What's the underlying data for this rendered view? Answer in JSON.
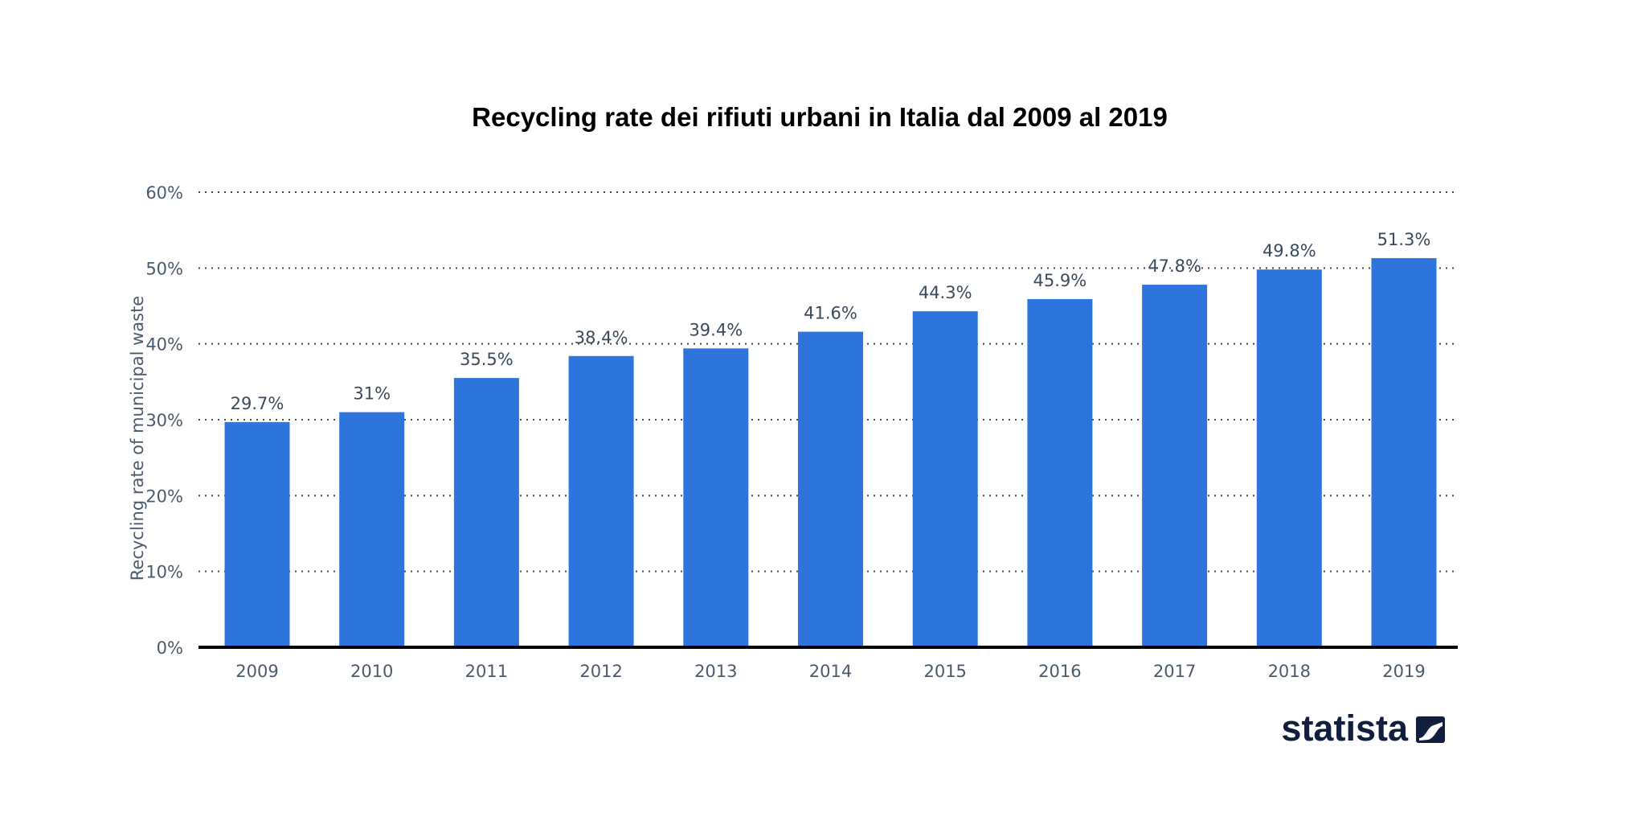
{
  "chart_data": {
    "type": "bar",
    "title": "Recycling rate dei rifiuti urbani in Italia dal 2009 al 2019",
    "xlabel": "",
    "ylabel": "Recycling rate of municipal waste",
    "categories": [
      "2009",
      "2010",
      "2011",
      "2012",
      "2013",
      "2014",
      "2015",
      "2016",
      "2017",
      "2018",
      "2019"
    ],
    "values": [
      29.7,
      31,
      35.5,
      38.4,
      39.4,
      41.6,
      44.3,
      45.9,
      47.8,
      49.8,
      51.3
    ],
    "value_labels": [
      "29.7%",
      "31%",
      "35.5%",
      "38.4%",
      "39.4%",
      "41.6%",
      "44.3%",
      "45.9%",
      "47.8%",
      "49.8%",
      "51.3%"
    ],
    "ylim": [
      0,
      60
    ],
    "yticks": [
      0,
      10,
      20,
      30,
      40,
      50,
      60
    ],
    "ytick_labels": [
      "0%",
      "10%",
      "20%",
      "30%",
      "40%",
      "50%",
      "60%"
    ],
    "grid": true,
    "grid_style": "dotted",
    "legend": "none"
  },
  "colors": {
    "bar": "#2d75dd",
    "grid": "#4a4a4a",
    "axis": "#000000",
    "tick_text": "#4a5a6e",
    "data_label_text": "#3a4a5c",
    "title_text": "#000000",
    "brand_text": "#0f1f3d"
  },
  "brand": {
    "name": "statista",
    "icon": "statista-logo-icon"
  }
}
